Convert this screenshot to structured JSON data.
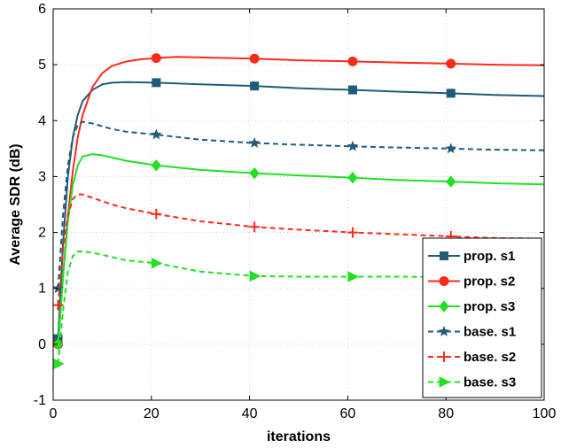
{
  "chart_data": {
    "type": "line",
    "xlabel": "iterations",
    "ylabel": "Average SDR (dB)",
    "xlim": [
      0,
      100
    ],
    "ylim": [
      -1,
      6
    ],
    "xticks": [
      0,
      20,
      40,
      60,
      80,
      100
    ],
    "yticks": [
      -1,
      0,
      1,
      2,
      3,
      4,
      5,
      6
    ],
    "grid": true,
    "legend_position": "bottom-right",
    "series": [
      {
        "name": "prop. s1",
        "color": "#1f5c7a",
        "dash": "solid",
        "marker": "square",
        "x": [
          1,
          2,
          3,
          4,
          5,
          6,
          8,
          10,
          12,
          15,
          21,
          30,
          41,
          50,
          61,
          70,
          81,
          90,
          100
        ],
        "y": [
          0.1,
          1.8,
          3.0,
          3.7,
          4.1,
          4.35,
          4.55,
          4.65,
          4.68,
          4.69,
          4.68,
          4.65,
          4.62,
          4.58,
          4.55,
          4.52,
          4.49,
          4.46,
          4.44
        ],
        "marker_x": [
          1,
          21,
          41,
          61,
          81
        ]
      },
      {
        "name": "prop. s2",
        "color": "#ff2a1a",
        "dash": "solid",
        "marker": "circle",
        "x": [
          1,
          2,
          3,
          4,
          5,
          6,
          8,
          10,
          12,
          15,
          18,
          21,
          25,
          30,
          41,
          50,
          61,
          70,
          81,
          90,
          100
        ],
        "y": [
          0.0,
          1.2,
          2.3,
          3.1,
          3.7,
          4.1,
          4.6,
          4.85,
          4.98,
          5.06,
          5.1,
          5.12,
          5.14,
          5.13,
          5.11,
          5.08,
          5.06,
          5.04,
          5.02,
          5.0,
          4.99
        ],
        "marker_x": [
          1,
          21,
          41,
          61,
          81
        ]
      },
      {
        "name": "prop. s3",
        "color": "#22e022",
        "dash": "solid",
        "marker": "diamond",
        "x": [
          1,
          2,
          3,
          4,
          5,
          6,
          8,
          10,
          12,
          15,
          21,
          30,
          41,
          50,
          61,
          70,
          81,
          90,
          100
        ],
        "y": [
          0.0,
          1.2,
          2.2,
          2.85,
          3.2,
          3.36,
          3.4,
          3.38,
          3.34,
          3.28,
          3.2,
          3.12,
          3.06,
          3.02,
          2.98,
          2.94,
          2.91,
          2.88,
          2.86
        ],
        "marker_x": [
          1,
          21,
          41,
          61,
          81
        ]
      },
      {
        "name": "base. s1",
        "color": "#1f5c7a",
        "dash": "dashed",
        "marker": "star",
        "x": [
          1,
          2,
          3,
          4,
          5,
          6,
          8,
          10,
          12,
          15,
          21,
          30,
          41,
          50,
          61,
          70,
          81,
          90,
          100
        ],
        "y": [
          1.0,
          2.3,
          3.2,
          3.7,
          3.93,
          3.98,
          3.95,
          3.9,
          3.85,
          3.8,
          3.75,
          3.66,
          3.6,
          3.57,
          3.54,
          3.52,
          3.5,
          3.48,
          3.47
        ],
        "marker_x": [
          1,
          21,
          41,
          61,
          81
        ]
      },
      {
        "name": "base. s2",
        "color": "#ff2a1a",
        "dash": "dashed",
        "marker": "plus",
        "x": [
          1,
          2,
          3,
          4,
          5,
          6,
          8,
          10,
          12,
          15,
          21,
          30,
          41,
          50,
          61,
          70,
          81,
          90,
          100
        ],
        "y": [
          0.7,
          1.7,
          2.3,
          2.6,
          2.68,
          2.68,
          2.62,
          2.56,
          2.5,
          2.43,
          2.33,
          2.2,
          2.1,
          2.05,
          2.0,
          1.97,
          1.93,
          1.9,
          1.89
        ],
        "marker_x": [
          1,
          21,
          41,
          61,
          81
        ]
      },
      {
        "name": "base. s3",
        "color": "#22e022",
        "dash": "dashed",
        "marker": "triangle-right",
        "x": [
          1,
          2,
          3,
          4,
          5,
          6,
          8,
          10,
          12,
          15,
          21,
          30,
          41,
          50,
          61,
          70,
          81,
          90,
          100
        ],
        "y": [
          -0.35,
          0.6,
          1.3,
          1.58,
          1.66,
          1.66,
          1.64,
          1.6,
          1.56,
          1.5,
          1.45,
          1.3,
          1.22,
          1.21,
          1.21,
          1.21,
          1.2,
          1.2,
          1.2
        ],
        "marker_x": [
          1,
          21,
          41,
          61,
          81
        ]
      }
    ]
  }
}
